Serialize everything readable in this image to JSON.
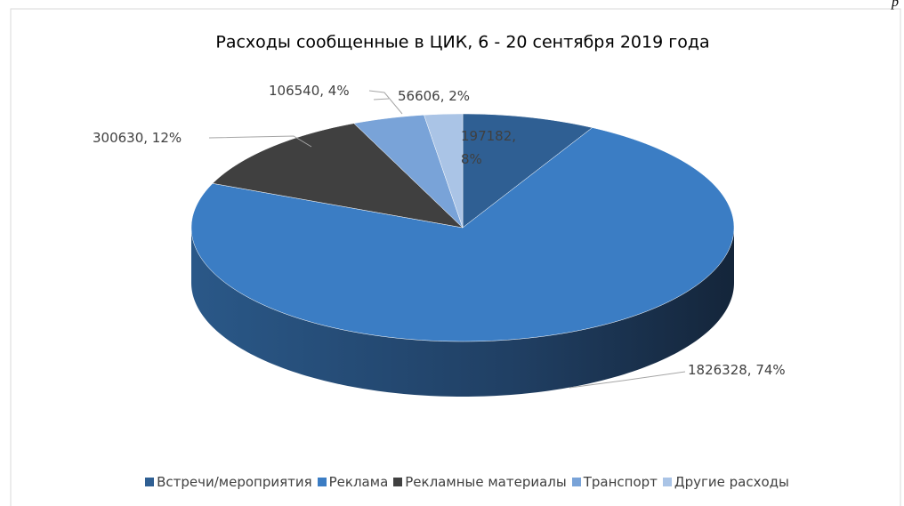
{
  "page_mark": "р",
  "chart_data": {
    "type": "pie3d",
    "title": "Расходы сообщенные в ЦИК, 6 - 20 сентября 2019 года",
    "categories": [
      "Встречи/мероприятия",
      "Реклама",
      "Рекламные материалы",
      "Транспорт",
      "Другие расходы"
    ],
    "values": [
      197182,
      1826328,
      300630,
      106540,
      56606
    ],
    "value_labels": [
      "197182, 8%",
      "1826328, 74%",
      "300630, 12%",
      "106540, 4%",
      "56606, 2%"
    ],
    "colors": [
      "#2f5f93",
      "#3b7dc4",
      "#404040",
      "#79a3d8",
      "#aac4e6"
    ],
    "legend": "bottom"
  }
}
